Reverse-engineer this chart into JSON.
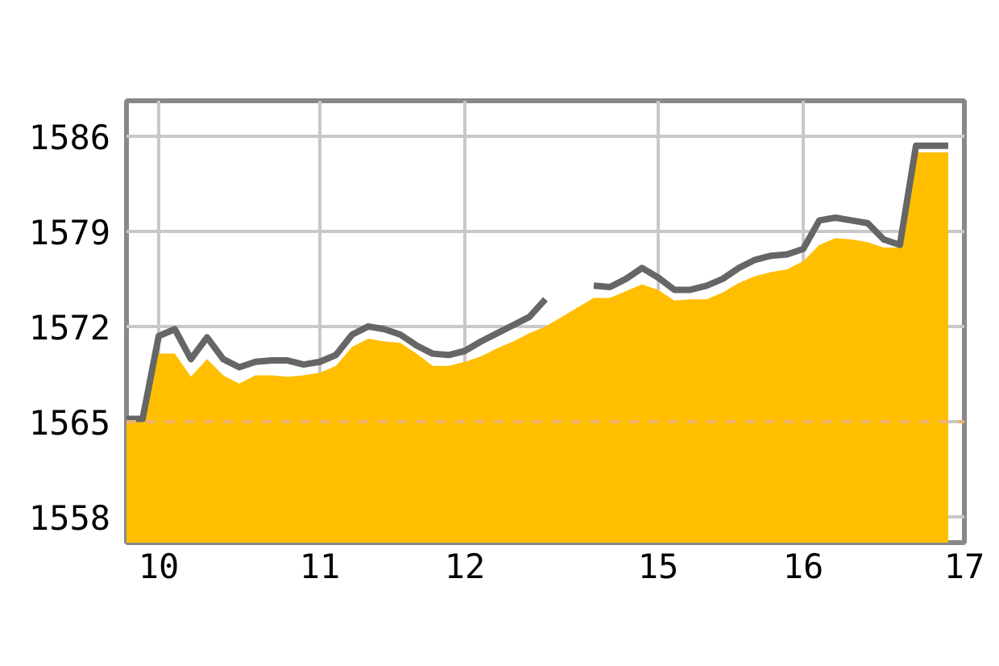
{
  "chart_data": {
    "type": "area",
    "categories": [
      null,
      null,
      "10",
      null,
      null,
      null,
      null,
      null,
      null,
      null,
      null,
      null,
      "11",
      null,
      null,
      null,
      null,
      null,
      null,
      null,
      null,
      "12",
      null,
      null,
      null,
      null,
      null,
      null,
      null,
      null,
      null,
      null,
      null,
      "15",
      null,
      null,
      null,
      null,
      null,
      null,
      null,
      null,
      "16",
      null,
      null,
      null,
      null,
      null,
      null,
      null,
      null,
      null,
      "17"
    ],
    "series": [
      {
        "color": "#ffbf00",
        "values": [
          1565.0,
          1565.0,
          1570.0,
          1570.0,
          1568.3,
          1569.6,
          1568.4,
          1567.8,
          1568.4,
          1568.4,
          1568.3,
          1568.4,
          1568.6,
          1569.1,
          1570.5,
          1571.1,
          1570.9,
          1570.8,
          1570.0,
          1569.1,
          1569.1,
          1569.4,
          1569.8,
          1570.4,
          1570.9,
          1571.5,
          1572.0,
          null,
          null,
          1574.1,
          1574.1,
          1574.6,
          1575.1,
          1574.7,
          1573.9,
          1574.0,
          1574.0,
          1574.5,
          1575.2,
          1575.7,
          1576.0,
          1576.2,
          1576.8,
          1578.0,
          1578.5,
          1578.4,
          1578.2,
          1577.8,
          1577.8,
          1584.8,
          1584.8,
          1584.8,
          null
        ]
      },
      {
        "type": "line",
        "color": "#666666",
        "values": [
          1565.2,
          1565.2,
          1571.3,
          1571.8,
          1569.6,
          1571.2,
          1569.6,
          1569.0,
          1569.4,
          1569.5,
          1569.5,
          1569.2,
          1569.4,
          1569.9,
          1571.4,
          1572.0,
          1571.8,
          1571.4,
          1570.6,
          1570.0,
          1569.9,
          1570.2,
          1570.9,
          1571.5,
          1572.1,
          1572.7,
          1574.0,
          null,
          null,
          1575.0,
          1574.9,
          1575.5,
          1576.3,
          1575.6,
          1574.7,
          1574.7,
          1575.0,
          1575.5,
          1576.3,
          1576.9,
          1577.2,
          1577.3,
          1577.7,
          1579.8,
          1580.0,
          1579.8,
          1579.6,
          1578.4,
          1578.0,
          1585.3,
          1585.3,
          1585.3,
          null
        ]
      }
    ],
    "ylim": [
      1556.1,
      1588.6
    ],
    "yticks": [
      1558,
      1565,
      1572,
      1579,
      1586
    ],
    "grid": true,
    "ref_lines": [
      {
        "axis": "y",
        "value": 1565,
        "color": "#f0b070",
        "line_style": "dashed"
      }
    ]
  }
}
